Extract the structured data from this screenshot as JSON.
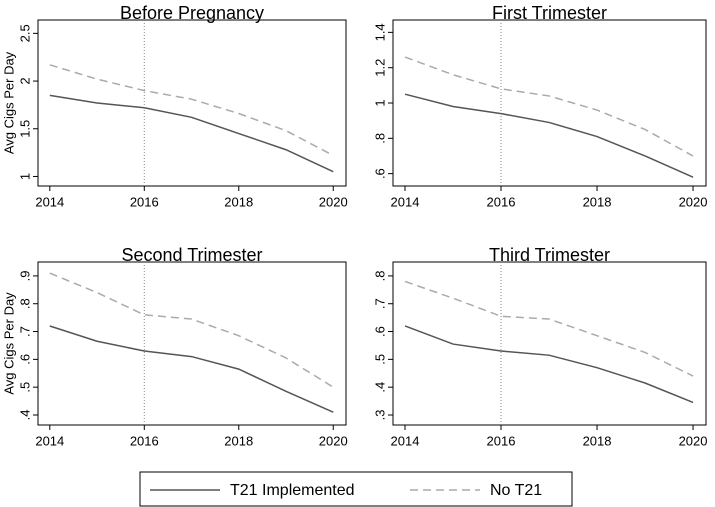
{
  "chart_data": [
    {
      "type": "line",
      "title": "Before Pregnancy",
      "y_label": "Avg Cigs Per Day",
      "x": [
        2014,
        2015,
        2016,
        2017,
        2018,
        2019,
        2020
      ],
      "series": [
        {
          "name": "T21 Implemented",
          "color": "#555555",
          "line_style": "solid",
          "values": [
            1.85,
            1.77,
            1.72,
            1.62,
            1.45,
            1.28,
            1.05
          ]
        },
        {
          "name": "No T21",
          "color": "#aaaaaa",
          "line_style": "dashed",
          "values": [
            2.17,
            2.02,
            1.9,
            1.81,
            1.66,
            1.48,
            1.22
          ]
        }
      ],
      "xlim": [
        2013.75,
        2020.27
      ],
      "xticks": [
        2014,
        2016,
        2018,
        2020
      ],
      "ylim": [
        0.9,
        2.64
      ],
      "yticks": [
        1,
        1.5,
        2,
        2.5
      ],
      "vline": 2016
    },
    {
      "type": "line",
      "title": "First Trimester",
      "x": [
        2014,
        2015,
        2016,
        2017,
        2018,
        2019,
        2020
      ],
      "series": [
        {
          "name": "T21 Implemented",
          "color": "#555555",
          "line_style": "solid",
          "values": [
            1.05,
            0.98,
            0.94,
            0.89,
            0.81,
            0.7,
            0.58
          ]
        },
        {
          "name": "No T21",
          "color": "#aaaaaa",
          "line_style": "dashed",
          "values": [
            1.26,
            1.16,
            1.08,
            1.04,
            0.96,
            0.85,
            0.7
          ]
        }
      ],
      "xlim": [
        2013.75,
        2020.27
      ],
      "xticks": [
        2014,
        2016,
        2018,
        2020
      ],
      "ylim": [
        0.53,
        1.47
      ],
      "yticks": [
        {
          "value": 0.6,
          "label": ".6"
        },
        {
          "value": 0.8,
          "label": ".8"
        },
        1,
        1.2,
        1.4
      ],
      "vline": 2016
    },
    {
      "type": "line",
      "title": "Second Trimester",
      "y_label": "Avg Cigs Per Day",
      "x": [
        2014,
        2015,
        2016,
        2017,
        2018,
        2019,
        2020
      ],
      "series": [
        {
          "name": "T21 Implemented",
          "color": "#555555",
          "line_style": "solid",
          "values": [
            0.72,
            0.665,
            0.63,
            0.61,
            0.565,
            0.485,
            0.41
          ]
        },
        {
          "name": "No T21",
          "color": "#aaaaaa",
          "line_style": "dashed",
          "values": [
            0.91,
            0.84,
            0.76,
            0.745,
            0.685,
            0.605,
            0.5
          ]
        }
      ],
      "xlim": [
        2013.75,
        2020.27
      ],
      "xticks": [
        2014,
        2016,
        2018,
        2020
      ],
      "ylim": [
        0.364,
        0.95
      ],
      "yticks": [
        {
          "value": 0.4,
          "label": ".4"
        },
        {
          "value": 0.5,
          "label": ".5"
        },
        {
          "value": 0.6,
          "label": ".6"
        },
        {
          "value": 0.7,
          "label": ".7"
        },
        {
          "value": 0.8,
          "label": ".8"
        },
        {
          "value": 0.9,
          "label": ".9"
        }
      ],
      "vline": 2016
    },
    {
      "type": "line",
      "title": "Third Trimester",
      "x": [
        2014,
        2015,
        2016,
        2017,
        2018,
        2019,
        2020
      ],
      "series": [
        {
          "name": "T21 Implemented",
          "color": "#555555",
          "line_style": "solid",
          "values": [
            0.62,
            0.555,
            0.53,
            0.515,
            0.47,
            0.415,
            0.345
          ]
        },
        {
          "name": "No T21",
          "color": "#aaaaaa",
          "line_style": "dashed",
          "values": [
            0.78,
            0.72,
            0.655,
            0.645,
            0.585,
            0.525,
            0.44
          ]
        }
      ],
      "xlim": [
        2013.75,
        2020.27
      ],
      "xticks": [
        2014,
        2016,
        2018,
        2020
      ],
      "ylim": [
        0.264,
        0.85
      ],
      "yticks": [
        {
          "value": 0.3,
          "label": ".3"
        },
        {
          "value": 0.4,
          "label": ".4"
        },
        {
          "value": 0.5,
          "label": ".5"
        },
        {
          "value": 0.6,
          "label": ".6"
        },
        {
          "value": 0.7,
          "label": ".7"
        },
        {
          "value": 0.8,
          "label": ".8"
        }
      ],
      "vline": 2016
    }
  ]
}
